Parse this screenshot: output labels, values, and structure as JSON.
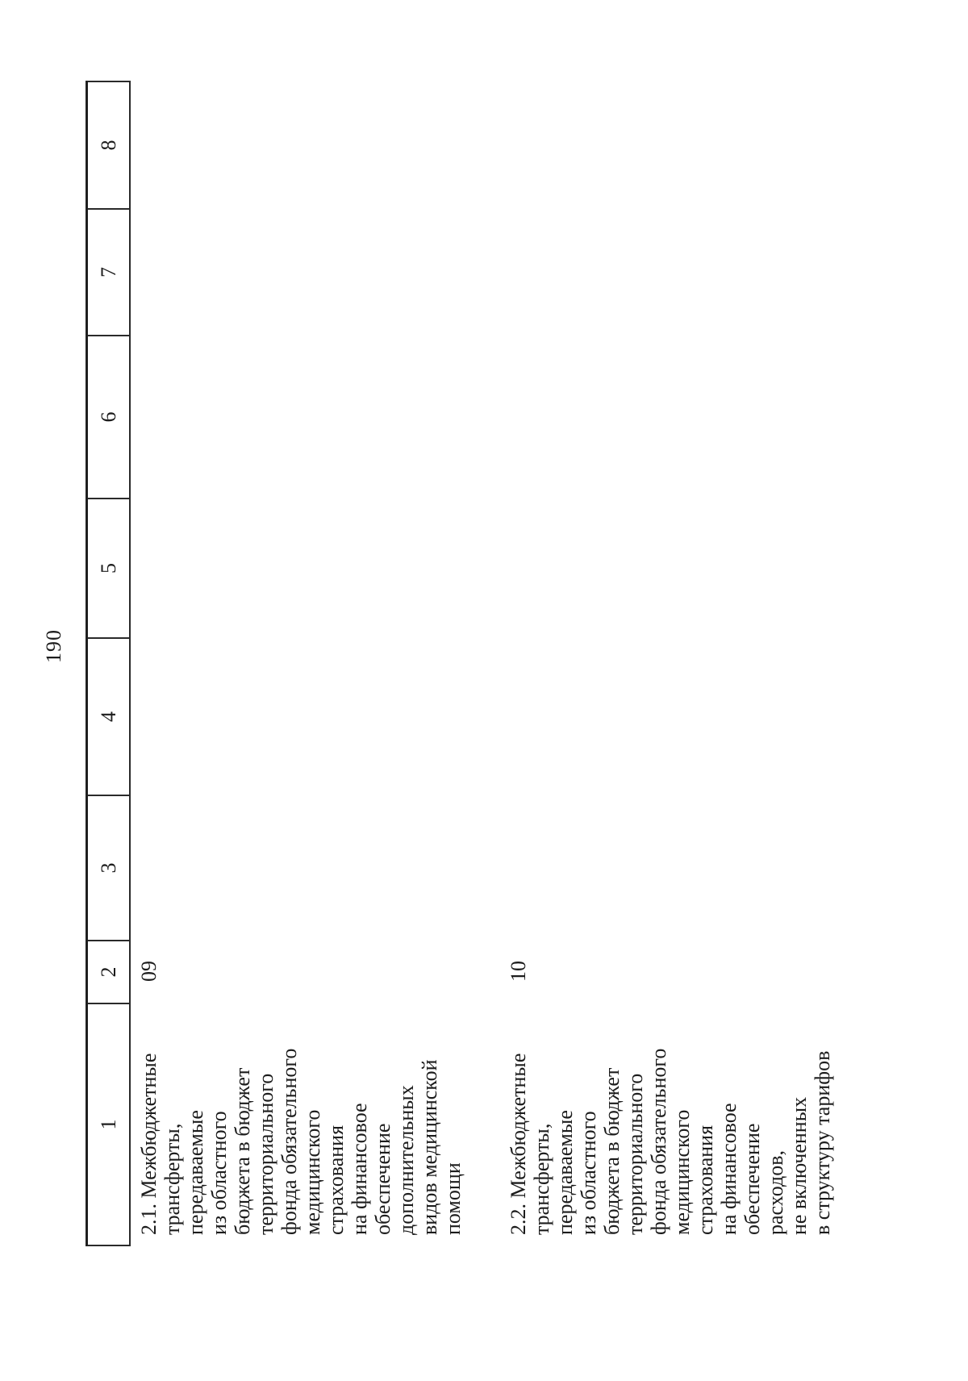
{
  "page": {
    "number": "190"
  },
  "table": {
    "header_cells": [
      "1",
      "2",
      "3",
      "4",
      "5",
      "6",
      "7",
      "8"
    ],
    "rows": [
      {
        "code": "09",
        "name_lines": [
          "2.1. Межбюджетные",
          "трансферты,",
          "передаваемые",
          "из областного",
          "бюджета в бюджет",
          "территориального",
          "фонда обязательного",
          "медицинского",
          "страхования",
          "на финансовое",
          "обеспечение",
          "дополнительных",
          "видов медицинской",
          "помощи"
        ]
      },
      {
        "code": "10",
        "name_lines": [
          "2.2. Межбюджетные",
          "трансферты,",
          "передаваемые",
          "из областного",
          "бюджета в бюджет",
          "территориального",
          "фонда обязательного",
          "медицинского",
          "страхования",
          "на финансовое",
          "обеспечение",
          "расходов,",
          "не включенных",
          "в структуру тарифов"
        ]
      }
    ]
  }
}
